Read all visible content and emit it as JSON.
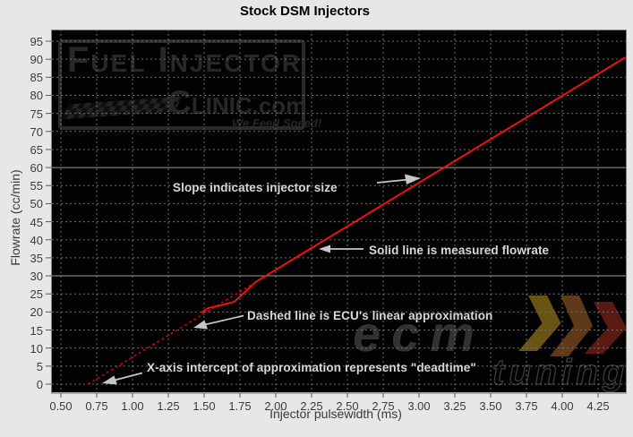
{
  "title": "Stock DSM Injectors",
  "axes": {
    "x": {
      "title": "Injector pulsewidth (ms)"
    },
    "y": {
      "title": "Flowrate (cc/min)"
    }
  },
  "annotations": [
    {
      "id": "slope",
      "text": "Slope indicates injector size",
      "arrow": "right-toward-line"
    },
    {
      "id": "solid",
      "text": "Solid line is measured flowrate",
      "arrow": "left-toward-line"
    },
    {
      "id": "dashed",
      "text": "Dashed line is ECU's linear approximation",
      "arrow": "down-left-toward-dashed-line"
    },
    {
      "id": "deadtime",
      "text": "X-axis intercept of approximation represents \"deadtime\"",
      "arrow": "down-left-toward-x-intercept"
    }
  ],
  "watermarks": {
    "fic": {
      "line1": "Fuel Injector",
      "line2": "Clinic",
      "domain": ".com",
      "tagline": "We Feed Speed!"
    },
    "ecm": {
      "line1": "ecm",
      "line2": "tuning"
    }
  },
  "colors": {
    "plot_background": "#020202",
    "page_background": "#e7e7e7",
    "measured_line": "#ee1111",
    "approximation_line": "#dd0000",
    "grid_dashed": "#6e6e6e",
    "grid_solid": "#9c9c9c",
    "annotation_text": "#d8d8d8",
    "arrow": "#c6c6c6"
  },
  "chart_data": {
    "type": "line",
    "title": "Stock DSM Injectors",
    "xlabel": "Injector pulsewidth (ms)",
    "ylabel": "Flowrate (cc/min)",
    "xlim": [
      0.43,
      4.45
    ],
    "ylim": [
      0,
      98
    ],
    "x_ticks": [
      "0.50",
      "0.75",
      "1.00",
      "1.25",
      "1.50",
      "1.75",
      "2.00",
      "2.25",
      "2.50",
      "2.75",
      "3.00",
      "3.25",
      "3.50",
      "3.75",
      "4.00",
      "4.25"
    ],
    "y_ticks": [
      0,
      5,
      10,
      15,
      20,
      25,
      30,
      35,
      40,
      45,
      50,
      55,
      60,
      65,
      70,
      75,
      80,
      85,
      90,
      95
    ],
    "solid_gridlines_y": [
      30,
      60
    ],
    "grid": "dashed-dark-theme",
    "legend": "none",
    "series": [
      {
        "name": "Measured flowrate",
        "style": "solid",
        "color": "#ee1111",
        "points": [
          [
            1.48,
            19.8
          ],
          [
            1.53,
            21.1
          ],
          [
            1.61,
            21.8
          ],
          [
            1.71,
            22.8
          ],
          [
            1.86,
            28.3
          ],
          [
            4.44,
            90.5
          ]
        ]
      },
      {
        "name": "ECU linear approximation",
        "style": "dashed",
        "color": "#dd0000",
        "points": [
          [
            0.69,
            0
          ],
          [
            4.44,
            90.5
          ]
        ]
      }
    ],
    "deadtime_ms": 0.69,
    "slope_cc_min_per_ms": 24.1
  }
}
